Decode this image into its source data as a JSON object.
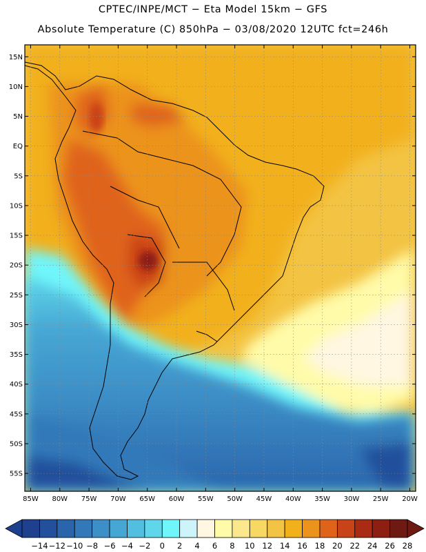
{
  "header": {
    "line1": "CPTEC/INPE/MCT −  Eta Model 15km − GFS",
    "line2": "Absolute Temperature (C) 850hPa − 03/08/2020 12UTC fct=246h"
  },
  "map": {
    "lon_range": [
      -86,
      -19
    ],
    "lat_range": [
      -58,
      17
    ],
    "lat_ticks": [
      "15N",
      "10N",
      "5N",
      "EQ",
      "5S",
      "10S",
      "15S",
      "20S",
      "25S",
      "30S",
      "35S",
      "40S",
      "45S",
      "50S",
      "55S"
    ],
    "lon_ticks": [
      "85W",
      "80W",
      "75W",
      "70W",
      "65W",
      "60W",
      "55W",
      "50W",
      "45W",
      "40W",
      "35W",
      "30W",
      "25W",
      "20W"
    ]
  },
  "colorbar": {
    "labels": [
      "−14",
      "−12",
      "−10",
      "−8",
      "−6",
      "−4",
      "−2",
      "0",
      "2",
      "4",
      "6",
      "8",
      "10",
      "12",
      "14",
      "16",
      "18",
      "20",
      "22",
      "24",
      "26",
      "28"
    ],
    "colors": [
      "#1f3f8f",
      "#23509c",
      "#2a65ac",
      "#3379b9",
      "#3d8fc7",
      "#47a7d4",
      "#52bee0",
      "#5fd6ea",
      "#6ff6fb",
      "#cdf3fb",
      "#fff7e1",
      "#fffba9",
      "#fbe88c",
      "#f7d863",
      "#f3c343",
      "#f2b01a",
      "#ec931e",
      "#e0631a",
      "#c94319",
      "#a92b14",
      "#8c1f12",
      "#6e1a12"
    ]
  }
}
